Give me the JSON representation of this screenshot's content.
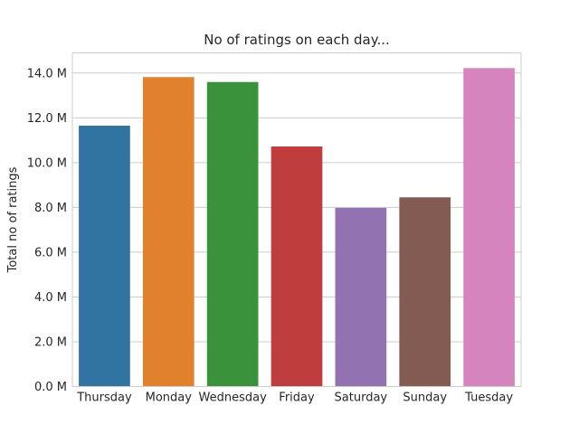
{
  "chart_data": {
    "type": "bar",
    "title": "No of ratings on each day...",
    "xlabel": "",
    "ylabel": "Total no of ratings",
    "categories": [
      "Thursday",
      "Monday",
      "Wednesday",
      "Friday",
      "Saturday",
      "Sunday",
      "Tuesday"
    ],
    "values": [
      11.65,
      13.82,
      13.6,
      10.72,
      7.98,
      8.45,
      14.22
    ],
    "value_unit": "M",
    "ylim": [
      0,
      14.9
    ],
    "yticks": [
      0,
      2,
      4,
      6,
      8,
      10,
      12,
      14
    ],
    "ytick_labels": [
      "0.0 M",
      "2.0 M",
      "4.0 M",
      "6.0 M",
      "8.0 M",
      "10.0 M",
      "12.0 M",
      "14.0 M"
    ],
    "grid": "horizontal",
    "legend": "none",
    "colors": [
      "#3274a1",
      "#e1812c",
      "#3a923a",
      "#c03d3e",
      "#9372b2",
      "#845b53",
      "#d684bd"
    ],
    "grid_color": "#cccccc",
    "frame_color": "#cccccc"
  }
}
